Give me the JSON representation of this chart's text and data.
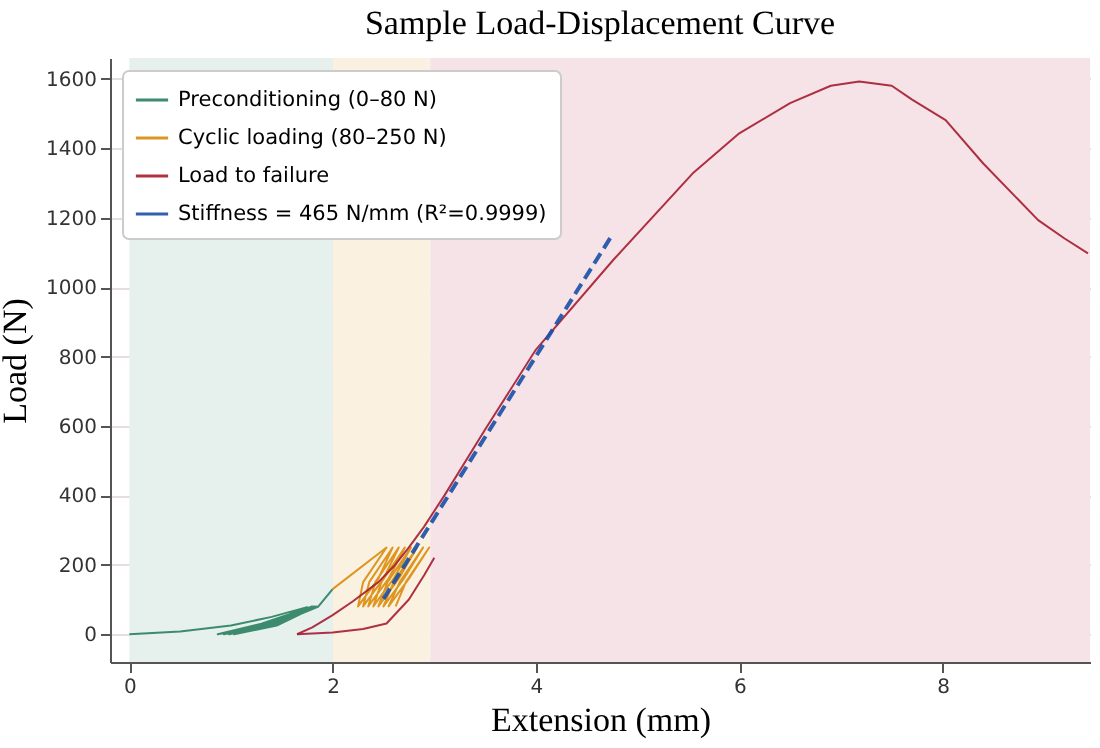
{
  "chart_data": {
    "type": "line",
    "title": "Sample Load-Displacement Curve",
    "xlabel": "Extension (mm)",
    "ylabel": "Load (N)",
    "xlim": [
      -0.19,
      9.45
    ],
    "ylim": [
      -80,
      1660
    ],
    "xticks": [
      0,
      2,
      4,
      6,
      8
    ],
    "yticks": [
      0,
      200,
      400,
      600,
      800,
      1000,
      1200,
      1400,
      1600
    ],
    "grid": true,
    "legend": "top left",
    "bands": [
      {
        "axis": "x",
        "from": 0,
        "to": 2,
        "color": "#e6f0ec"
      },
      {
        "axis": "x",
        "from": 2,
        "to": 2.96,
        "color": "#fbf1e1"
      },
      {
        "axis": "x",
        "from": 2.96,
        "to": 9.45,
        "color": "#f6e3e7"
      }
    ],
    "series": [
      {
        "name": "Preconditioning (0–80 N)",
        "color": "#2a7f62",
        "x": [
          0,
          0.5,
          1.0,
          1.4,
          1.75,
          1.3,
          0.87,
          1.3,
          1.8,
          1.35,
          0.93,
          1.35,
          1.82,
          1.4,
          0.98,
          1.4,
          1.84,
          1.45,
          1.03,
          1.45,
          1.86,
          2.0
        ],
        "values": [
          0,
          8,
          25,
          50,
          78,
          25,
          0,
          30,
          80,
          25,
          0,
          30,
          80,
          25,
          0,
          30,
          80,
          25,
          0,
          30,
          80,
          130
        ]
      },
      {
        "name": "Cyclic loading (80–250 N)",
        "color": "#d98c0a",
        "x": [
          2.0,
          2.53,
          2.3,
          2.25,
          2.45,
          2.59,
          2.36,
          2.3,
          2.5,
          2.65,
          2.42,
          2.35,
          2.55,
          2.71,
          2.48,
          2.4,
          2.6,
          2.77,
          2.54,
          2.45,
          2.65,
          2.83,
          2.6,
          2.5,
          2.7,
          2.89,
          2.66,
          2.55,
          2.75,
          2.95,
          2.72,
          2.62
        ],
        "values": [
          130,
          250,
          150,
          80,
          160,
          250,
          150,
          80,
          160,
          250,
          150,
          80,
          160,
          250,
          150,
          80,
          160,
          250,
          150,
          80,
          160,
          250,
          150,
          80,
          160,
          250,
          150,
          80,
          160,
          250,
          150,
          80
        ]
      },
      {
        "name": "Load to failure",
        "color": "#a51c30",
        "x": [
          1.65,
          1.8,
          2.0,
          2.2,
          2.45,
          2.6,
          2.75,
          2.9,
          3.1,
          3.5,
          4.0,
          4.76,
          5.54,
          6.0,
          6.5,
          6.9,
          7.18,
          7.5,
          7.7,
          8.03,
          8.4,
          8.94,
          9.2,
          9.43
        ],
        "values": [
          0,
          20,
          55,
          95,
          150,
          195,
          250,
          310,
          400,
          590,
          820,
          1078,
          1327,
          1443,
          1530,
          1580,
          1592,
          1580,
          1540,
          1481,
          1356,
          1193,
          1140,
          1097
        ]
      },
      {
        "color": "#a51c30",
        "x": [
          1.65,
          2.0,
          2.3,
          2.53,
          2.75,
          2.9,
          3.0
        ],
        "values": [
          0,
          5,
          15,
          31,
          100,
          170,
          220
        ]
      },
      {
        "name": "Stiffness = 465 N/mm (R²=0.9999)",
        "color": "#1a4fa8",
        "line_style": "dashed",
        "x": [
          2.5,
          4.73
        ],
        "values": [
          102,
          1141
        ]
      }
    ]
  }
}
